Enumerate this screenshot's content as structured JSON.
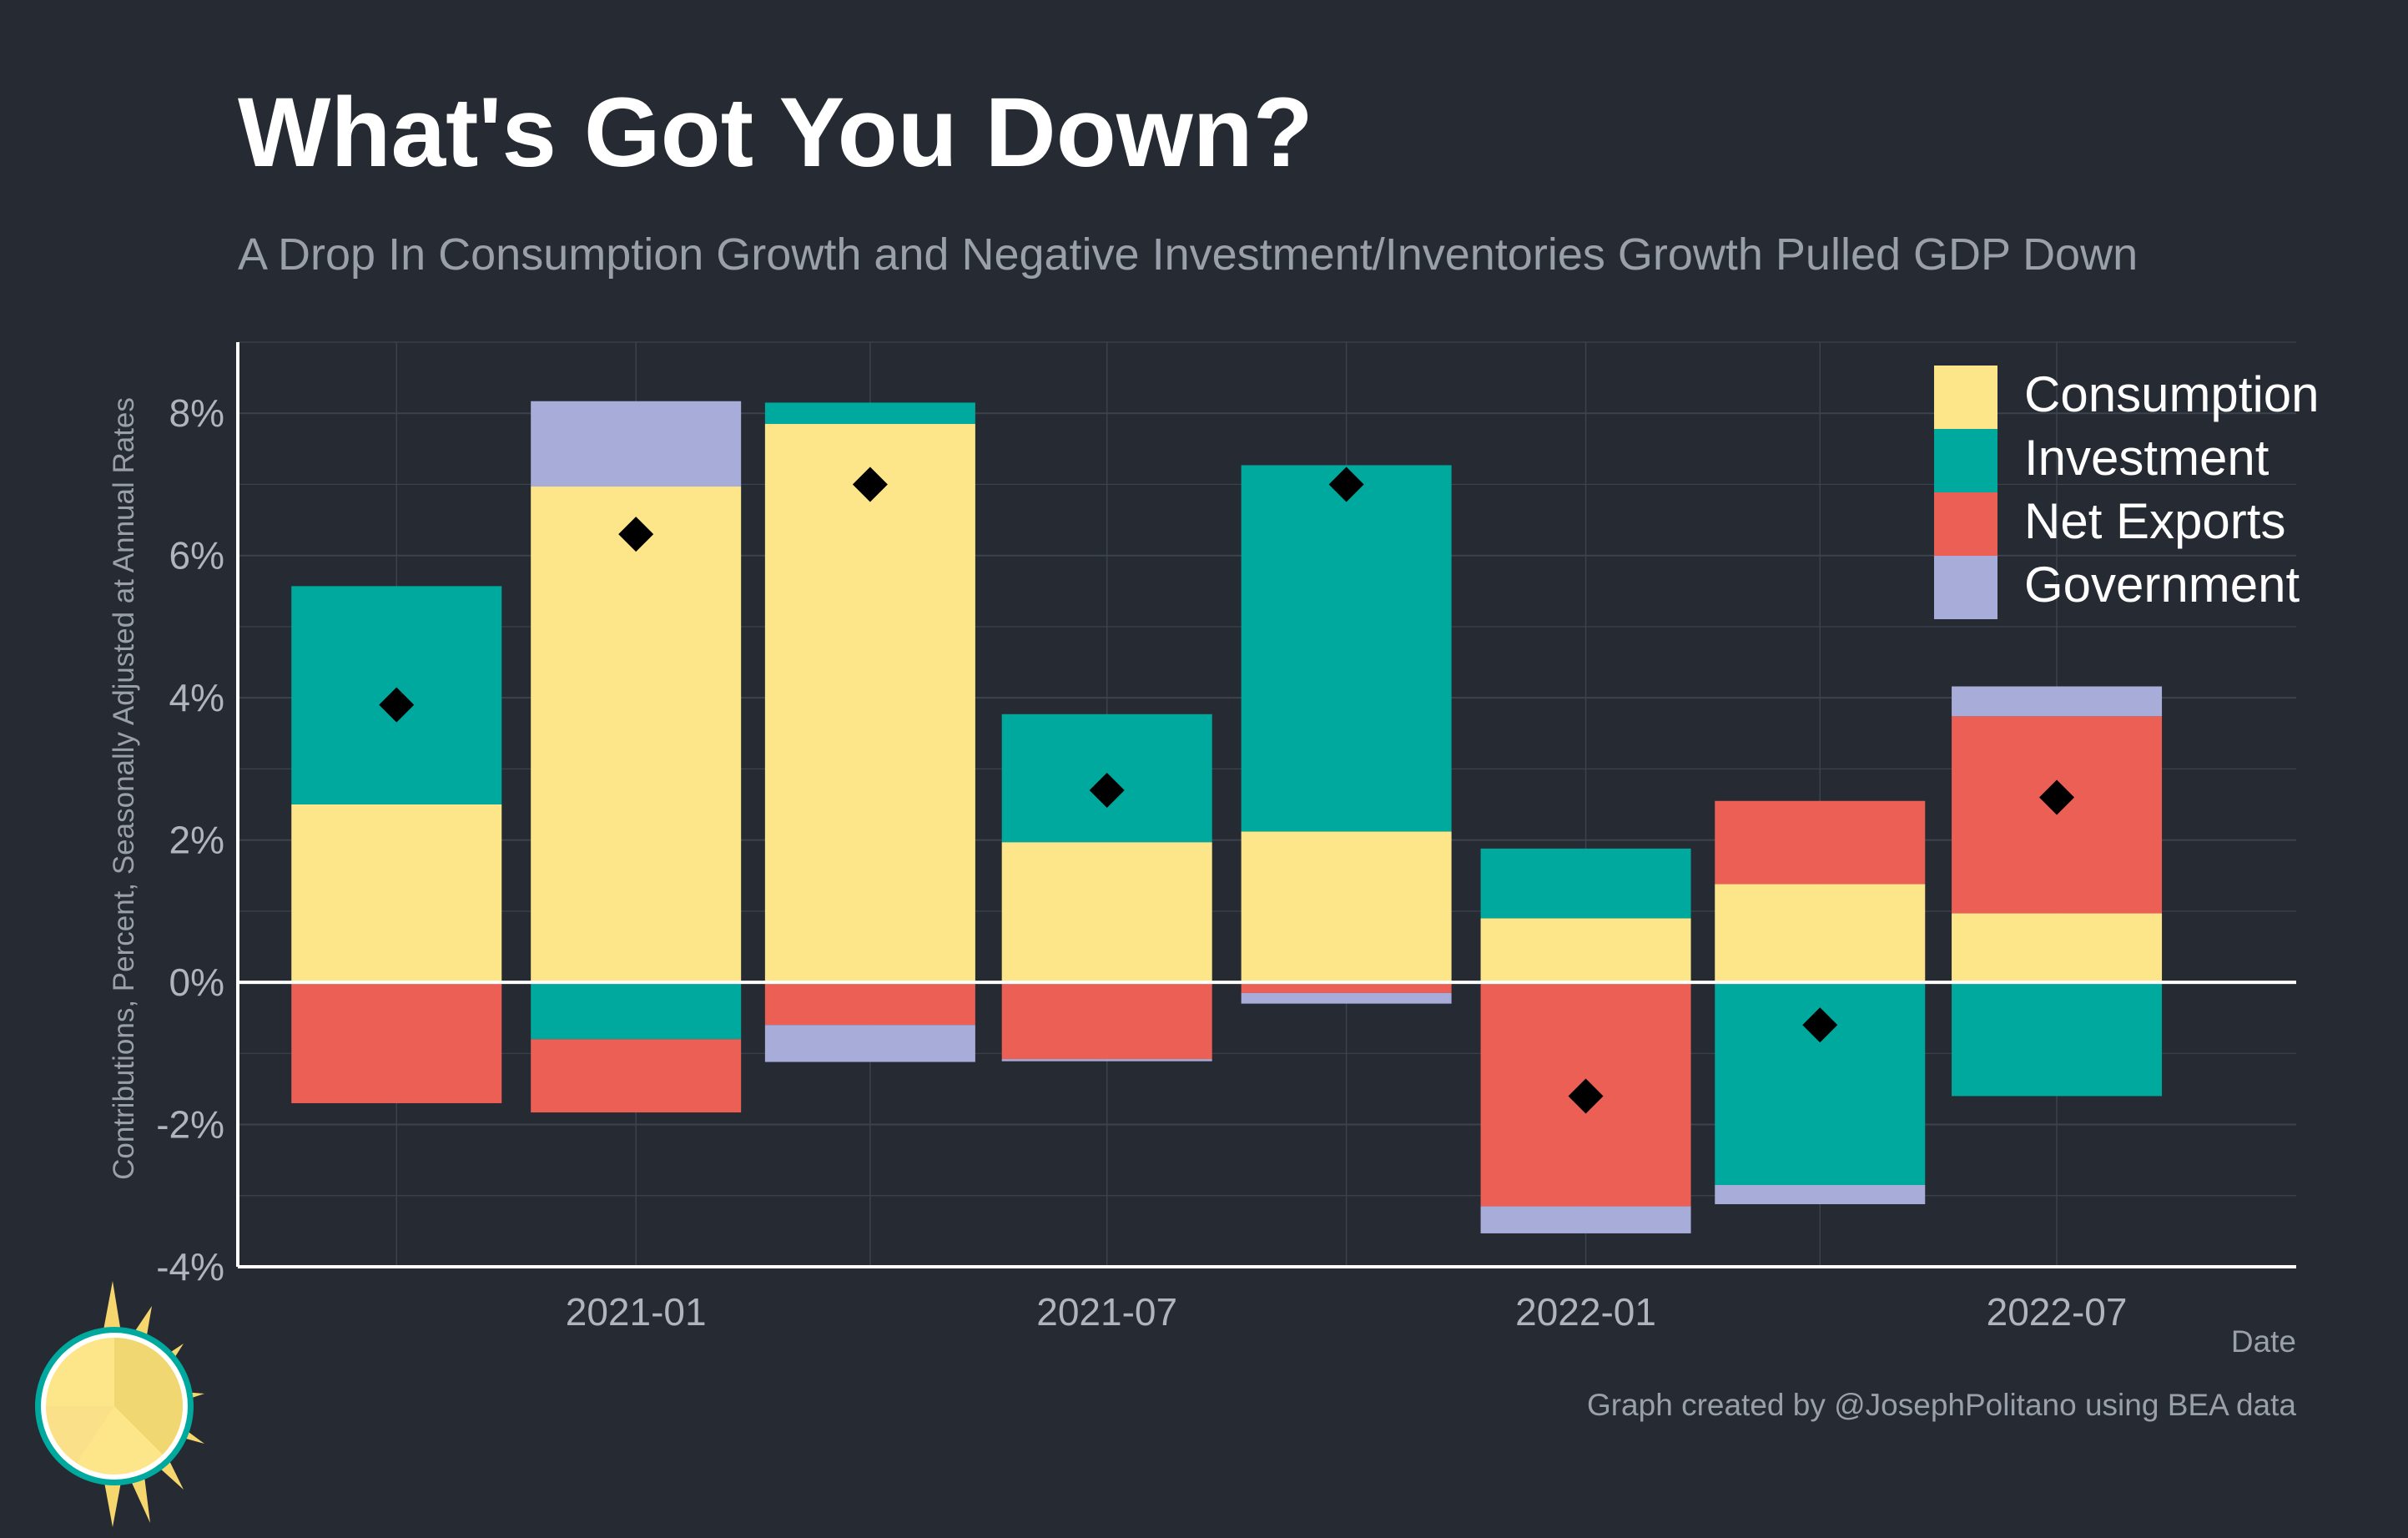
{
  "title": "What's Got You Down?",
  "subtitle": "A Drop In Consumption Growth and Negative Investment/Inventories Growth Pulled GDP Down",
  "caption": "Graph created by @JosephPolitano using BEA data",
  "colors": {
    "background": "#252a33",
    "grid": "#3d434d",
    "axis": "#ffffff",
    "tick_text": "#b0b5bd",
    "Consumption": "#fde68a",
    "Investment": "#00a99d",
    "Net Exports": "#eb5f55",
    "Government": "#a8acd9",
    "marker": "#000000"
  },
  "chart_data": {
    "type": "bar",
    "stacked": true,
    "title": "What's Got You Down?",
    "subtitle": "A Drop In Consumption Growth and Negative Investment/Inventories Growth Pulled GDP Down",
    "xlabel": "Date",
    "ylabel": "Contributions, Percent, Seasonally Adjusted at Annual Rates",
    "x_ticks": [
      "2021-01",
      "2021-07",
      "2022-01",
      "2022-07"
    ],
    "x_tick_positions": [
      "2021-01-01",
      "2021-07-01",
      "2022-01-01",
      "2022-07-01"
    ],
    "x_range": [
      "2020-08-01",
      "2022-10-01"
    ],
    "y_ticks": [
      -4,
      -2,
      0,
      2,
      4,
      6,
      8
    ],
    "y_tick_labels": [
      "-4%",
      "-2%",
      "0%",
      "2%",
      "4%",
      "6%",
      "8%"
    ],
    "ylim": [
      -4,
      9
    ],
    "grid": true,
    "legend_position": "top-right",
    "quarters": [
      "2020-10-01",
      "2021-01-01",
      "2021-04-01",
      "2021-07-01",
      "2021-10-01",
      "2022-01-01",
      "2022-04-01",
      "2022-07-01"
    ],
    "series": [
      {
        "name": "Consumption",
        "values": [
          2.5,
          6.97,
          7.85,
          1.97,
          2.12,
          0.9,
          1.38,
          0.97
        ]
      },
      {
        "name": "Investment",
        "values": [
          3.07,
          -0.8,
          0.3,
          1.8,
          5.15,
          0.98,
          -2.85,
          -1.6
        ]
      },
      {
        "name": "Net Exports",
        "values": [
          -1.7,
          -1.03,
          -0.6,
          -1.08,
          -0.15,
          -3.15,
          1.17,
          2.77
        ]
      },
      {
        "name": "Government",
        "values": [
          0.0,
          1.2,
          -0.52,
          -0.03,
          -0.15,
          -0.38,
          -0.27,
          0.42
        ]
      }
    ],
    "total_gdp": [
      3.9,
      6.3,
      7.0,
      2.7,
      7.0,
      -1.6,
      -0.6,
      2.6
    ]
  }
}
